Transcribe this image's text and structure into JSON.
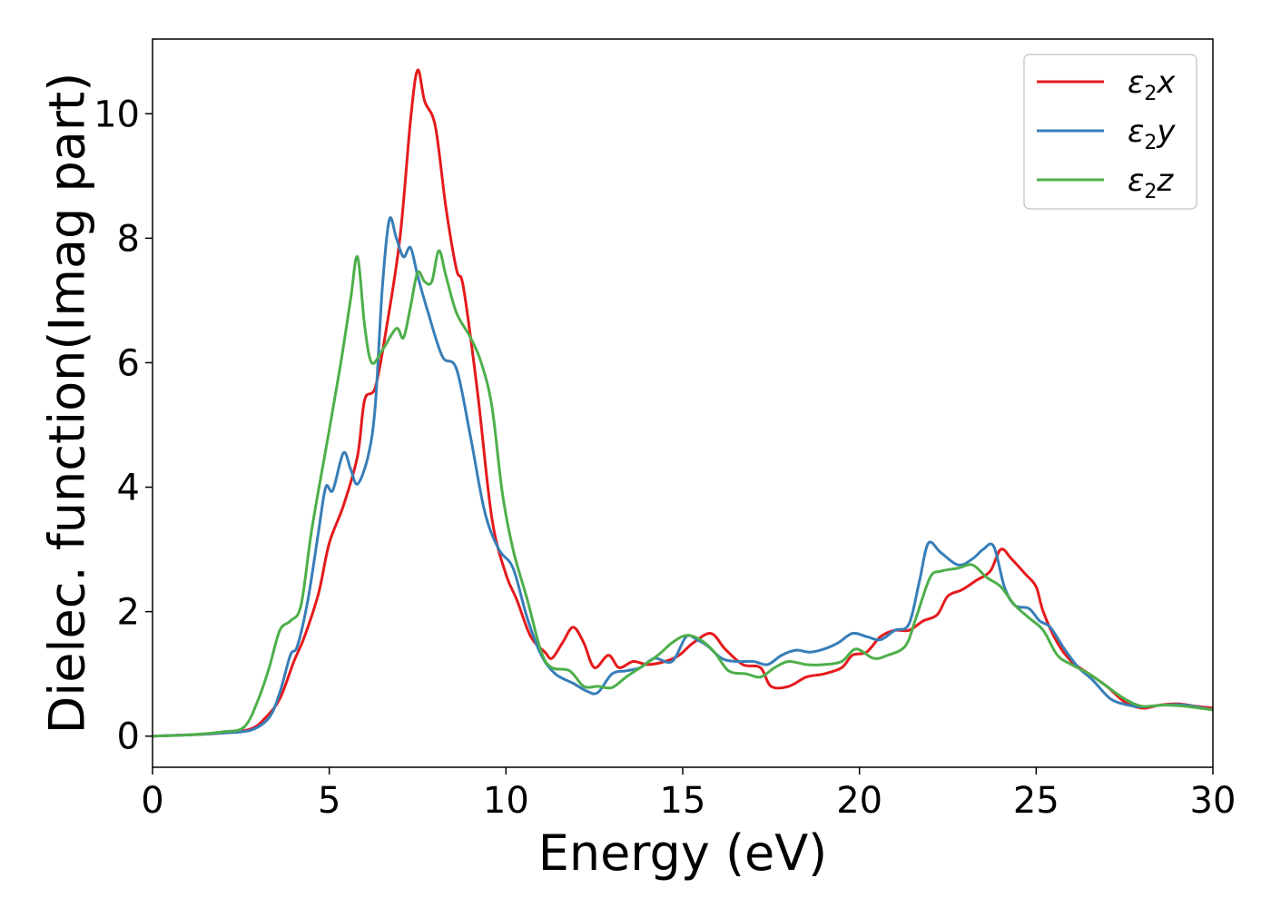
{
  "chart_data": {
    "type": "line",
    "xlabel": "Energy (eV)",
    "ylabel": "Dielec. function(Imag part)",
    "xlim": [
      0,
      30
    ],
    "ylim": [
      -0.5,
      11.2
    ],
    "xticks": [
      0,
      5,
      10,
      15,
      20,
      25,
      30
    ],
    "yticks": [
      0,
      2,
      4,
      6,
      8,
      10
    ],
    "xtick_labels": [
      "0",
      "5",
      "10",
      "15",
      "20",
      "25",
      "30"
    ],
    "ytick_labels": [
      "0",
      "2",
      "4",
      "6",
      "8",
      "10"
    ],
    "grid": false,
    "legend_position": "top-right",
    "series": [
      {
        "name": "x",
        "legend": {
          "sym": "ε",
          "sub": "2",
          "axis": "x"
        },
        "color": "#e41a1c",
        "points": [
          [
            0,
            0
          ],
          [
            1,
            0.02
          ],
          [
            2,
            0.05
          ],
          [
            2.8,
            0.12
          ],
          [
            3.2,
            0.3
          ],
          [
            3.6,
            0.6
          ],
          [
            4.0,
            1.2
          ],
          [
            4.3,
            1.6
          ],
          [
            4.7,
            2.3
          ],
          [
            5.0,
            3.1
          ],
          [
            5.4,
            3.7
          ],
          [
            5.8,
            4.5
          ],
          [
            6.0,
            5.4
          ],
          [
            6.3,
            5.6
          ],
          [
            6.6,
            6.5
          ],
          [
            7.0,
            8.0
          ],
          [
            7.3,
            9.9
          ],
          [
            7.5,
            10.7
          ],
          [
            7.7,
            10.2
          ],
          [
            8.0,
            9.8
          ],
          [
            8.3,
            8.5
          ],
          [
            8.6,
            7.5
          ],
          [
            8.8,
            7.2
          ],
          [
            9.2,
            5.5
          ],
          [
            9.6,
            3.5
          ],
          [
            10.0,
            2.6
          ],
          [
            10.3,
            2.2
          ],
          [
            10.7,
            1.6
          ],
          [
            11.1,
            1.35
          ],
          [
            11.3,
            1.25
          ],
          [
            11.6,
            1.5
          ],
          [
            11.9,
            1.75
          ],
          [
            12.2,
            1.5
          ],
          [
            12.5,
            1.1
          ],
          [
            12.9,
            1.3
          ],
          [
            13.2,
            1.1
          ],
          [
            13.6,
            1.2
          ],
          [
            14.0,
            1.15
          ],
          [
            14.5,
            1.2
          ],
          [
            14.9,
            1.3
          ],
          [
            15.3,
            1.5
          ],
          [
            15.8,
            1.65
          ],
          [
            16.2,
            1.4
          ],
          [
            16.7,
            1.15
          ],
          [
            17.2,
            1.1
          ],
          [
            17.5,
            0.8
          ],
          [
            18.0,
            0.8
          ],
          [
            18.5,
            0.95
          ],
          [
            19.0,
            1.0
          ],
          [
            19.5,
            1.1
          ],
          [
            19.8,
            1.3
          ],
          [
            20.2,
            1.35
          ],
          [
            20.6,
            1.6
          ],
          [
            21.0,
            1.7
          ],
          [
            21.4,
            1.7
          ],
          [
            21.8,
            1.85
          ],
          [
            22.2,
            1.95
          ],
          [
            22.5,
            2.25
          ],
          [
            22.9,
            2.35
          ],
          [
            23.3,
            2.5
          ],
          [
            23.7,
            2.65
          ],
          [
            24.0,
            3.0
          ],
          [
            24.3,
            2.85
          ],
          [
            24.7,
            2.6
          ],
          [
            25.0,
            2.4
          ],
          [
            25.2,
            2.0
          ],
          [
            25.6,
            1.5
          ],
          [
            26.0,
            1.2
          ],
          [
            26.5,
            1.0
          ],
          [
            27.0,
            0.8
          ],
          [
            27.5,
            0.55
          ],
          [
            28.0,
            0.45
          ],
          [
            28.5,
            0.5
          ],
          [
            29.0,
            0.52
          ],
          [
            29.5,
            0.48
          ],
          [
            30.0,
            0.45
          ]
        ]
      },
      {
        "name": "y",
        "legend": {
          "sym": "ε",
          "sub": "2",
          "axis": "y"
        },
        "color": "#377eb8",
        "points": [
          [
            0,
            0
          ],
          [
            1,
            0.02
          ],
          [
            2,
            0.05
          ],
          [
            2.8,
            0.1
          ],
          [
            3.3,
            0.3
          ],
          [
            3.6,
            0.7
          ],
          [
            3.9,
            1.3
          ],
          [
            4.1,
            1.45
          ],
          [
            4.4,
            2.2
          ],
          [
            4.7,
            3.3
          ],
          [
            4.9,
            4.0
          ],
          [
            5.1,
            3.95
          ],
          [
            5.4,
            4.55
          ],
          [
            5.6,
            4.3
          ],
          [
            5.8,
            4.05
          ],
          [
            6.1,
            4.5
          ],
          [
            6.3,
            5.3
          ],
          [
            6.5,
            7.2
          ],
          [
            6.7,
            8.3
          ],
          [
            6.9,
            8.0
          ],
          [
            7.1,
            7.7
          ],
          [
            7.3,
            7.85
          ],
          [
            7.5,
            7.4
          ],
          [
            7.8,
            6.8
          ],
          [
            8.2,
            6.1
          ],
          [
            8.6,
            5.9
          ],
          [
            9.0,
            4.8
          ],
          [
            9.4,
            3.6
          ],
          [
            9.8,
            3.0
          ],
          [
            10.2,
            2.7
          ],
          [
            10.6,
            1.9
          ],
          [
            11.0,
            1.3
          ],
          [
            11.4,
            1.0
          ],
          [
            11.9,
            0.85
          ],
          [
            12.3,
            0.72
          ],
          [
            12.6,
            0.7
          ],
          [
            13.0,
            1.0
          ],
          [
            13.4,
            1.05
          ],
          [
            13.8,
            1.1
          ],
          [
            14.2,
            1.25
          ],
          [
            14.7,
            1.2
          ],
          [
            15.1,
            1.6
          ],
          [
            15.4,
            1.55
          ],
          [
            15.7,
            1.45
          ],
          [
            16.1,
            1.25
          ],
          [
            16.5,
            1.2
          ],
          [
            17.0,
            1.2
          ],
          [
            17.4,
            1.15
          ],
          [
            17.8,
            1.3
          ],
          [
            18.2,
            1.38
          ],
          [
            18.6,
            1.35
          ],
          [
            19.0,
            1.4
          ],
          [
            19.4,
            1.5
          ],
          [
            19.8,
            1.65
          ],
          [
            20.2,
            1.6
          ],
          [
            20.6,
            1.55
          ],
          [
            21.0,
            1.7
          ],
          [
            21.4,
            1.8
          ],
          [
            21.7,
            2.5
          ],
          [
            21.95,
            3.1
          ],
          [
            22.3,
            2.95
          ],
          [
            22.8,
            2.75
          ],
          [
            23.2,
            2.85
          ],
          [
            23.5,
            3.0
          ],
          [
            23.8,
            3.05
          ],
          [
            24.1,
            2.4
          ],
          [
            24.4,
            2.1
          ],
          [
            24.8,
            2.05
          ],
          [
            25.1,
            1.85
          ],
          [
            25.4,
            1.75
          ],
          [
            25.8,
            1.4
          ],
          [
            26.2,
            1.1
          ],
          [
            26.6,
            0.9
          ],
          [
            27.1,
            0.6
          ],
          [
            27.6,
            0.5
          ],
          [
            28.0,
            0.47
          ],
          [
            28.6,
            0.5
          ],
          [
            29.2,
            0.5
          ],
          [
            30.0,
            0.42
          ]
        ]
      },
      {
        "name": "z",
        "legend": {
          "sym": "ε",
          "sub": "2",
          "axis": "z"
        },
        "color": "#4daf4a",
        "points": [
          [
            0,
            0
          ],
          [
            1,
            0.02
          ],
          [
            2,
            0.07
          ],
          [
            2.6,
            0.15
          ],
          [
            3.0,
            0.6
          ],
          [
            3.3,
            1.1
          ],
          [
            3.6,
            1.7
          ],
          [
            3.9,
            1.85
          ],
          [
            4.2,
            2.1
          ],
          [
            4.5,
            3.3
          ],
          [
            4.9,
            4.6
          ],
          [
            5.3,
            5.9
          ],
          [
            5.6,
            7.0
          ],
          [
            5.8,
            7.7
          ],
          [
            6.0,
            6.6
          ],
          [
            6.2,
            6.0
          ],
          [
            6.5,
            6.2
          ],
          [
            6.9,
            6.55
          ],
          [
            7.1,
            6.4
          ],
          [
            7.3,
            6.9
          ],
          [
            7.5,
            7.45
          ],
          [
            7.7,
            7.3
          ],
          [
            7.9,
            7.3
          ],
          [
            8.1,
            7.8
          ],
          [
            8.3,
            7.4
          ],
          [
            8.6,
            6.8
          ],
          [
            9.0,
            6.4
          ],
          [
            9.3,
            6.0
          ],
          [
            9.6,
            5.3
          ],
          [
            9.9,
            3.9
          ],
          [
            10.2,
            3.0
          ],
          [
            10.6,
            2.2
          ],
          [
            11.0,
            1.35
          ],
          [
            11.3,
            1.1
          ],
          [
            11.8,
            1.05
          ],
          [
            12.2,
            0.8
          ],
          [
            12.6,
            0.8
          ],
          [
            13.0,
            0.78
          ],
          [
            13.4,
            0.95
          ],
          [
            13.8,
            1.1
          ],
          [
            14.3,
            1.3
          ],
          [
            14.7,
            1.5
          ],
          [
            15.1,
            1.62
          ],
          [
            15.5,
            1.55
          ],
          [
            15.9,
            1.35
          ],
          [
            16.3,
            1.05
          ],
          [
            16.8,
            1.0
          ],
          [
            17.2,
            0.95
          ],
          [
            17.6,
            1.1
          ],
          [
            18.0,
            1.2
          ],
          [
            18.5,
            1.15
          ],
          [
            19.0,
            1.15
          ],
          [
            19.5,
            1.2
          ],
          [
            19.9,
            1.4
          ],
          [
            20.4,
            1.25
          ],
          [
            20.8,
            1.3
          ],
          [
            21.3,
            1.45
          ],
          [
            21.6,
            1.9
          ],
          [
            22.0,
            2.55
          ],
          [
            22.3,
            2.65
          ],
          [
            22.8,
            2.7
          ],
          [
            23.2,
            2.75
          ],
          [
            23.6,
            2.55
          ],
          [
            24.0,
            2.4
          ],
          [
            24.4,
            2.1
          ],
          [
            24.8,
            1.9
          ],
          [
            25.2,
            1.7
          ],
          [
            25.6,
            1.3
          ],
          [
            26.0,
            1.15
          ],
          [
            26.5,
            1.0
          ],
          [
            27.0,
            0.8
          ],
          [
            27.5,
            0.6
          ],
          [
            28.0,
            0.48
          ],
          [
            28.6,
            0.5
          ],
          [
            29.2,
            0.48
          ],
          [
            30.0,
            0.42
          ]
        ]
      }
    ]
  }
}
